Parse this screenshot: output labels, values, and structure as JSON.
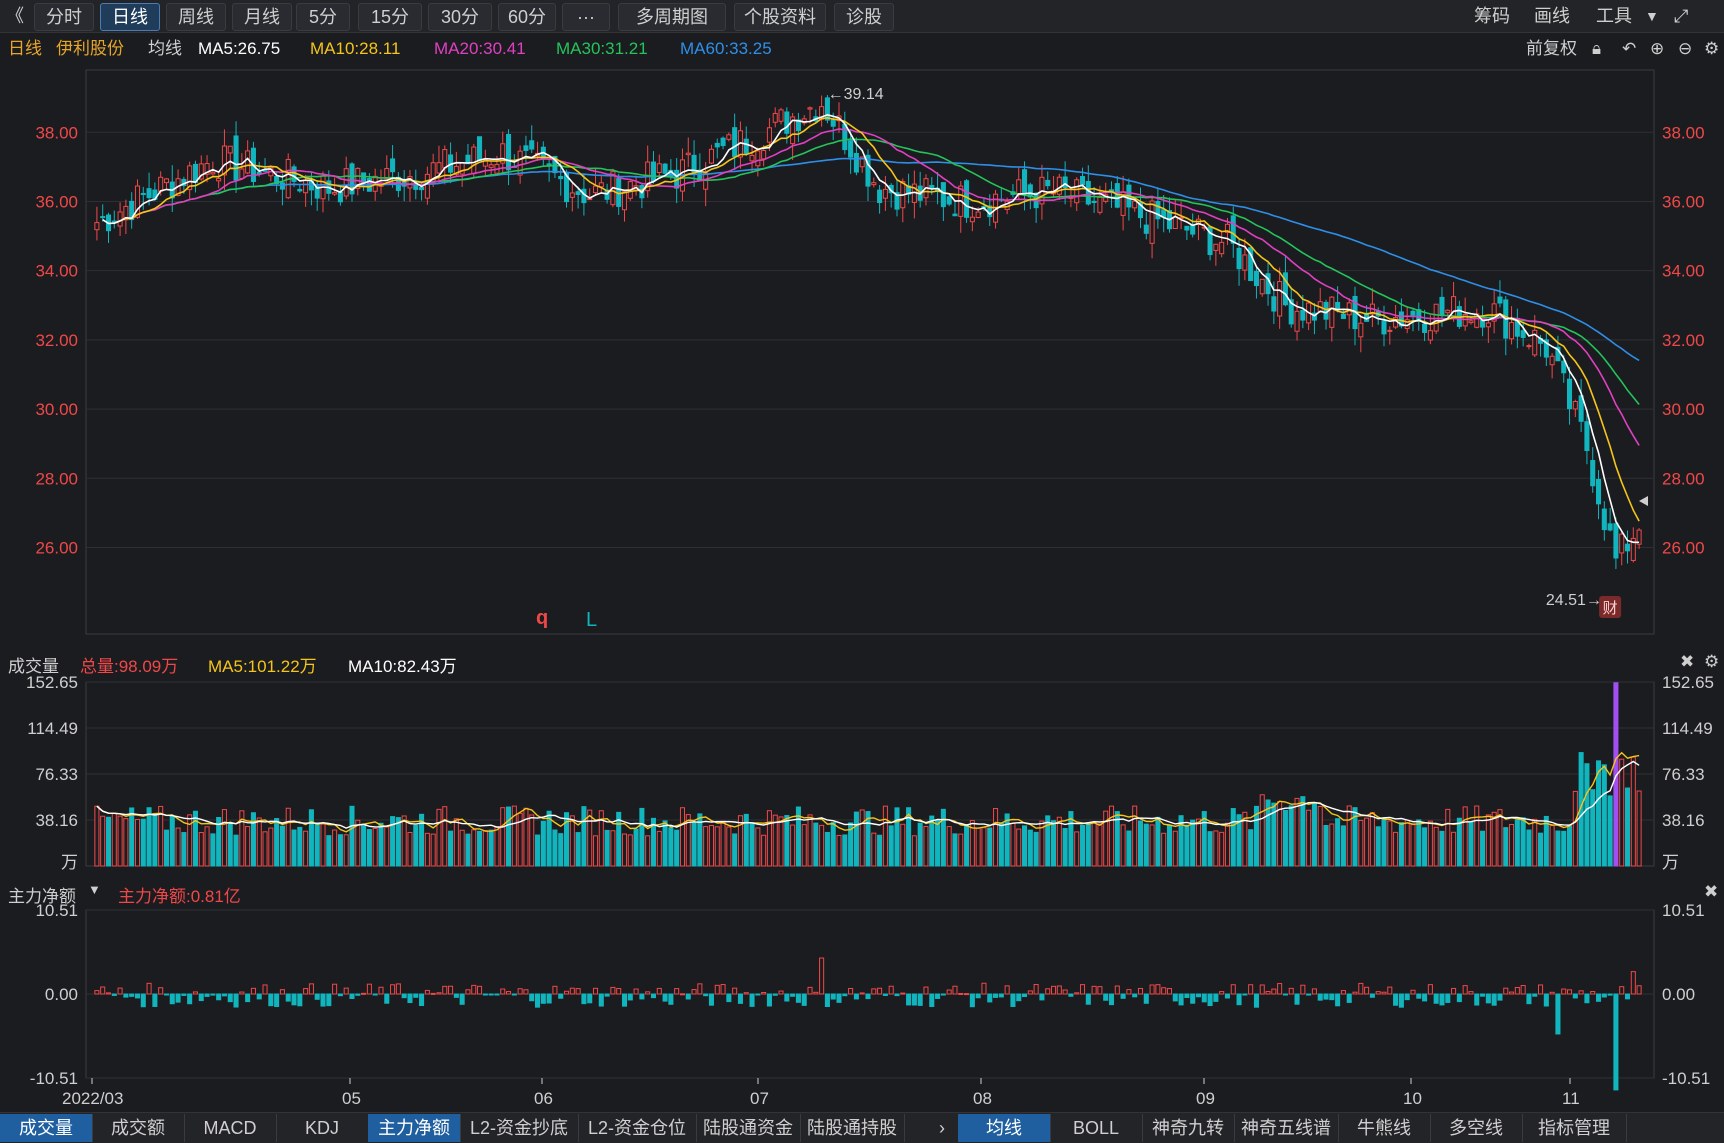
{
  "toolbar": {
    "back": "《",
    "periods": [
      "分时",
      "日线",
      "周线",
      "月线",
      "5分",
      "15分",
      "30分",
      "60分",
      "···",
      "多周期图",
      "个股资料",
      "诊股"
    ],
    "active_period": "日线",
    "right": [
      "筹码",
      "画线",
      "工具"
    ]
  },
  "legend": {
    "period": "日线",
    "stock": "伊利股份",
    "ma_label": "均线",
    "ma5": "MA5:26.75",
    "ma10": "MA10:28.11",
    "ma20": "MA20:30.41",
    "ma30": "MA30:31.21",
    "ma60": "MA60:33.25",
    "fq": "前复权"
  },
  "colors": {
    "up": "#f04848",
    "down": "#11b5be",
    "ma5": "#ffffff",
    "ma10": "#f5c518",
    "ma20": "#e040c0",
    "ma30": "#24c45a",
    "ma60": "#2e8fe8",
    "axis": "#f04848"
  },
  "volume_panel": {
    "title": "成交量",
    "total": "总量:98.09万",
    "ma5": "MA5:101.22万",
    "ma10": "MA10:82.43万",
    "unit": "万"
  },
  "flow_panel": {
    "title": "主力净额",
    "value": "主力净额:0.81亿"
  },
  "markers": {
    "high": "←39.14",
    "low": "24.51→",
    "cai": "财",
    "q": "q",
    "l": "L"
  },
  "bottom_tabs_left": [
    "成交量",
    "成交额",
    "MACD",
    "KDJ",
    "主力净额",
    "L2-资金抄底",
    "L2-资金仓位",
    "陆股通资金",
    "陆股通持股"
  ],
  "bottom_tabs_right": [
    "均线",
    "BOLL",
    "神奇九转",
    "神奇五线谱",
    "牛熊线",
    "多空线",
    "指标管理"
  ],
  "chart_data": {
    "type": "candlestick",
    "price_ticks": [
      "38.00",
      "36.00",
      "34.00",
      "32.00",
      "30.00",
      "28.00",
      "26.00"
    ],
    "volume_ticks": [
      "152.65",
      "114.49",
      "76.33",
      "38.16",
      "万"
    ],
    "flow_ticks": [
      "10.51",
      "0.00",
      "-10.51"
    ],
    "x_ticks": [
      "2022/03",
      "05",
      "06",
      "07",
      "08",
      "09",
      "10",
      "11"
    ],
    "price_range": [
      23.5,
      39.8
    ],
    "volume_range": [
      0,
      152.65
    ],
    "flow_range": [
      -10.51,
      10.51
    ],
    "ma_last": {
      "ma5": 26.75,
      "ma10": 28.11,
      "ma20": 30.41,
      "ma30": 31.21,
      "ma60": 33.25
    }
  }
}
